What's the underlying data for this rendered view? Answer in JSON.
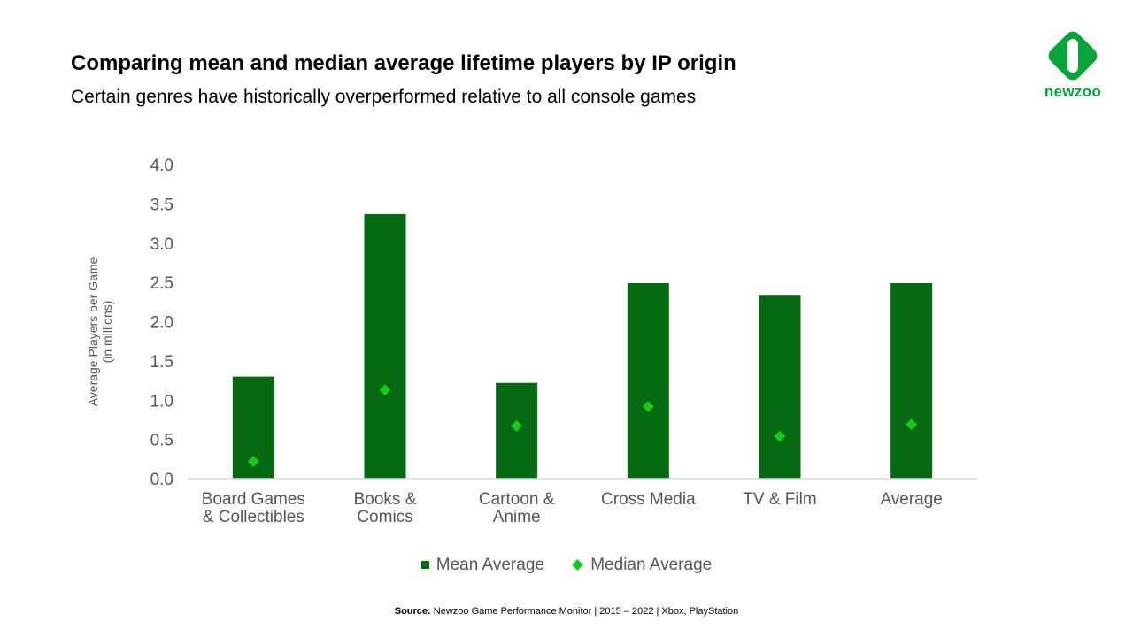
{
  "header": {
    "title": "Comparing mean and median average lifetime players by IP origin",
    "subtitle": "Certain genres have historically overperformed relative to all console games"
  },
  "logo": {
    "text": "newzoo",
    "icon": "newzoo-logo-icon"
  },
  "colors": {
    "mean": "#056a12",
    "median": "#19c81e",
    "logo": "#0aa33a"
  },
  "chart_data": {
    "type": "bar",
    "ylabel": "Average Players per Game (in millions)",
    "ylabel_lines": [
      "Average Players per Game",
      "(in millions)"
    ],
    "ylim": [
      0,
      4.0
    ],
    "yticks": [
      "0.0",
      "0.5",
      "1.0",
      "1.5",
      "2.0",
      "2.5",
      "3.0",
      "3.5",
      "4.0"
    ],
    "grid": false,
    "legend_position": "bottom",
    "categories": [
      [
        "Board Games",
        "& Collectibles"
      ],
      [
        "Books &",
        "Comics"
      ],
      [
        "Cartoon &",
        "Anime"
      ],
      [
        "Cross Media"
      ],
      [
        "TV & Film"
      ],
      [
        "Average"
      ]
    ],
    "series": [
      {
        "name": "Mean Average",
        "style": "bar",
        "values": [
          1.3,
          3.37,
          1.22,
          2.49,
          2.33,
          2.49
        ]
      },
      {
        "name": "Median Average",
        "style": "diamond-marker",
        "values": [
          0.22,
          1.13,
          0.67,
          0.92,
          0.54,
          0.69
        ]
      }
    ]
  },
  "legend": {
    "mean_label": "Mean Average",
    "median_label": "Median Average"
  },
  "source": {
    "label": "Source:",
    "text": "Newzoo Game Performance Monitor | 2015 – 2022 | Xbox, PlayStation"
  }
}
